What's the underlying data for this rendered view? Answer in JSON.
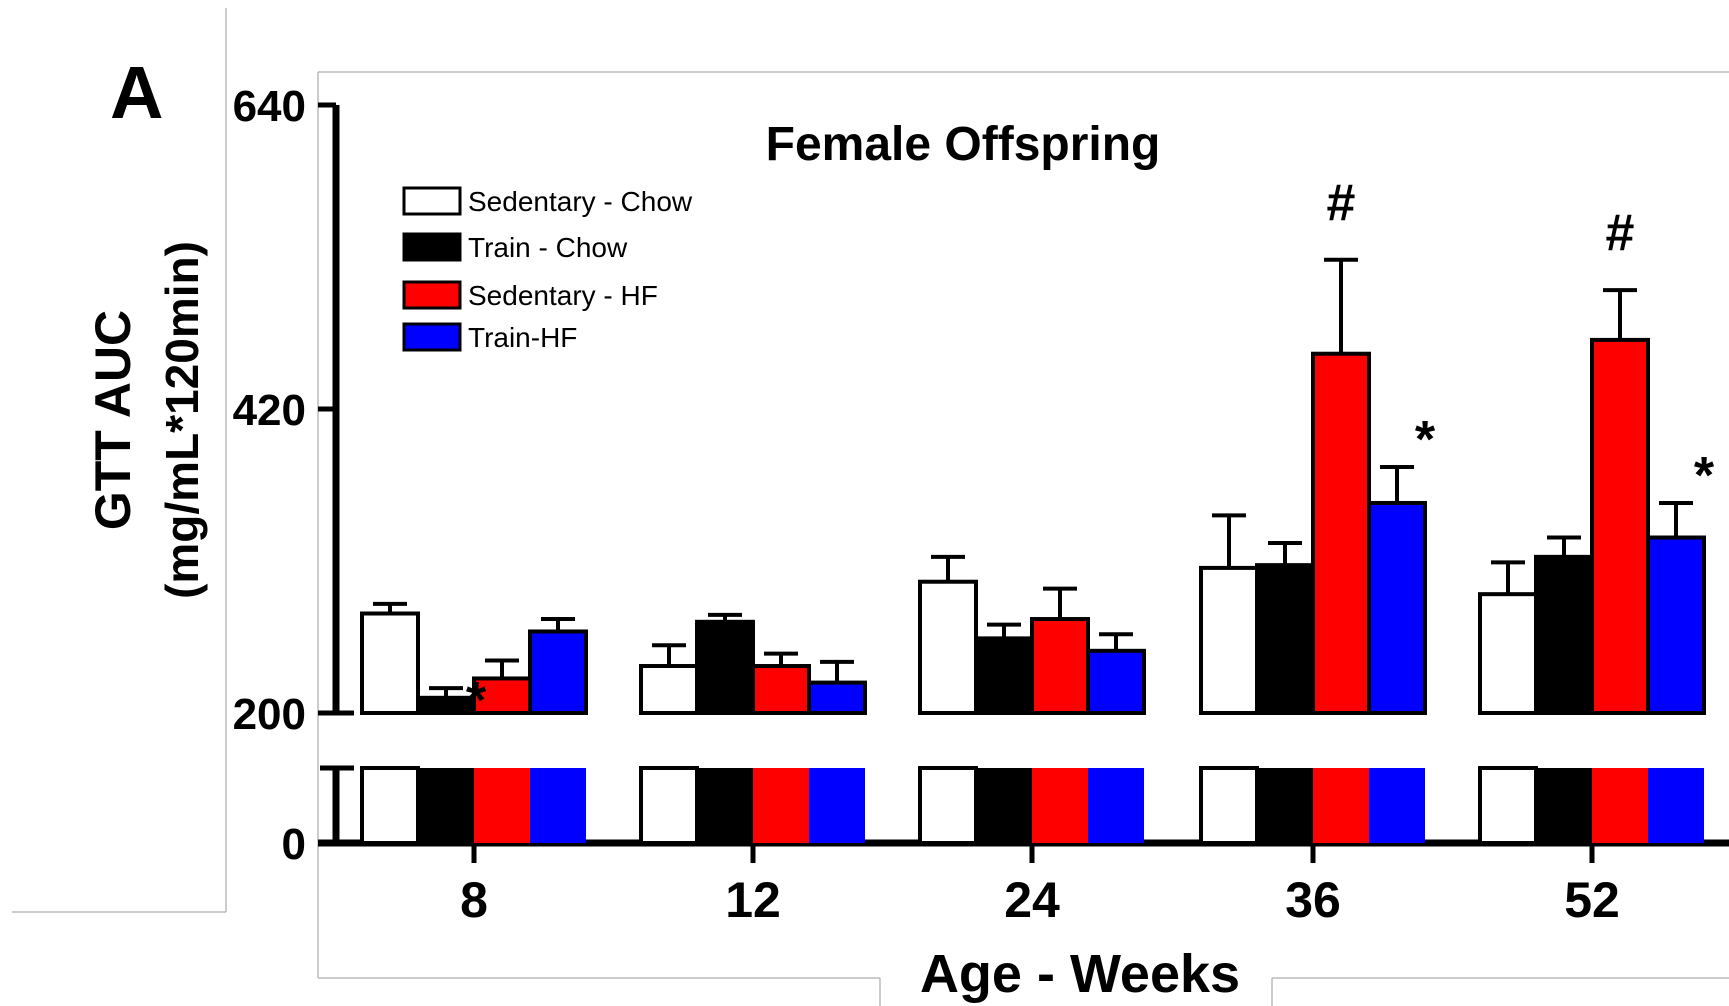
{
  "panel_label": "A",
  "colors": {
    "sedentary_chow": "#ffffff",
    "train_chow": "#000000",
    "sedentary_hf": "#ff0000",
    "train_hf": "#0000ff"
  },
  "chart_data": {
    "type": "bar",
    "title": "Female Offspring",
    "xlabel": "Age - Weeks",
    "ylabel_line1": "GTT AUC",
    "ylabel_line2": "(mg/mL*120min)",
    "categories": [
      "8",
      "12",
      "24",
      "36",
      "52"
    ],
    "y_ticks": [
      "0",
      "200",
      "420",
      "640"
    ],
    "ylim_lower_segment": [
      0,
      200
    ],
    "ylim_upper_segment": [
      200,
      640
    ],
    "axis_break": true,
    "grid": false,
    "legend_position": "top-left",
    "series": [
      {
        "name": "Sedentary - Chow",
        "color": "#ffffff",
        "values": [
          272,
          234,
          295,
          305,
          286
        ],
        "errors": [
          7,
          15,
          18,
          38,
          23
        ]
      },
      {
        "name": "Train - Chow",
        "color": "#000000",
        "values": [
          211,
          266,
          254,
          307,
          313
        ],
        "errors": [
          7,
          5,
          10,
          16,
          14
        ]
      },
      {
        "name": "Sedentary - HF",
        "color": "#ff0000",
        "values": [
          225,
          234,
          268,
          460,
          470
        ],
        "errors": [
          13,
          9,
          22,
          68,
          36
        ]
      },
      {
        "name": "Train-HF",
        "color": "#0000ff",
        "values": [
          259,
          222,
          245,
          352,
          327
        ],
        "errors": [
          9,
          15,
          12,
          26,
          25
        ]
      }
    ],
    "annotations": [
      {
        "category": "8",
        "series": "Train - Chow",
        "text": "*"
      },
      {
        "category": "36",
        "series": "Sedentary - HF",
        "text": "#"
      },
      {
        "category": "36",
        "series": "Train-HF",
        "text": "*"
      },
      {
        "category": "52",
        "series": "Sedentary - HF",
        "text": "#"
      },
      {
        "category": "52",
        "series": "Train-HF",
        "text": "*"
      }
    ]
  }
}
